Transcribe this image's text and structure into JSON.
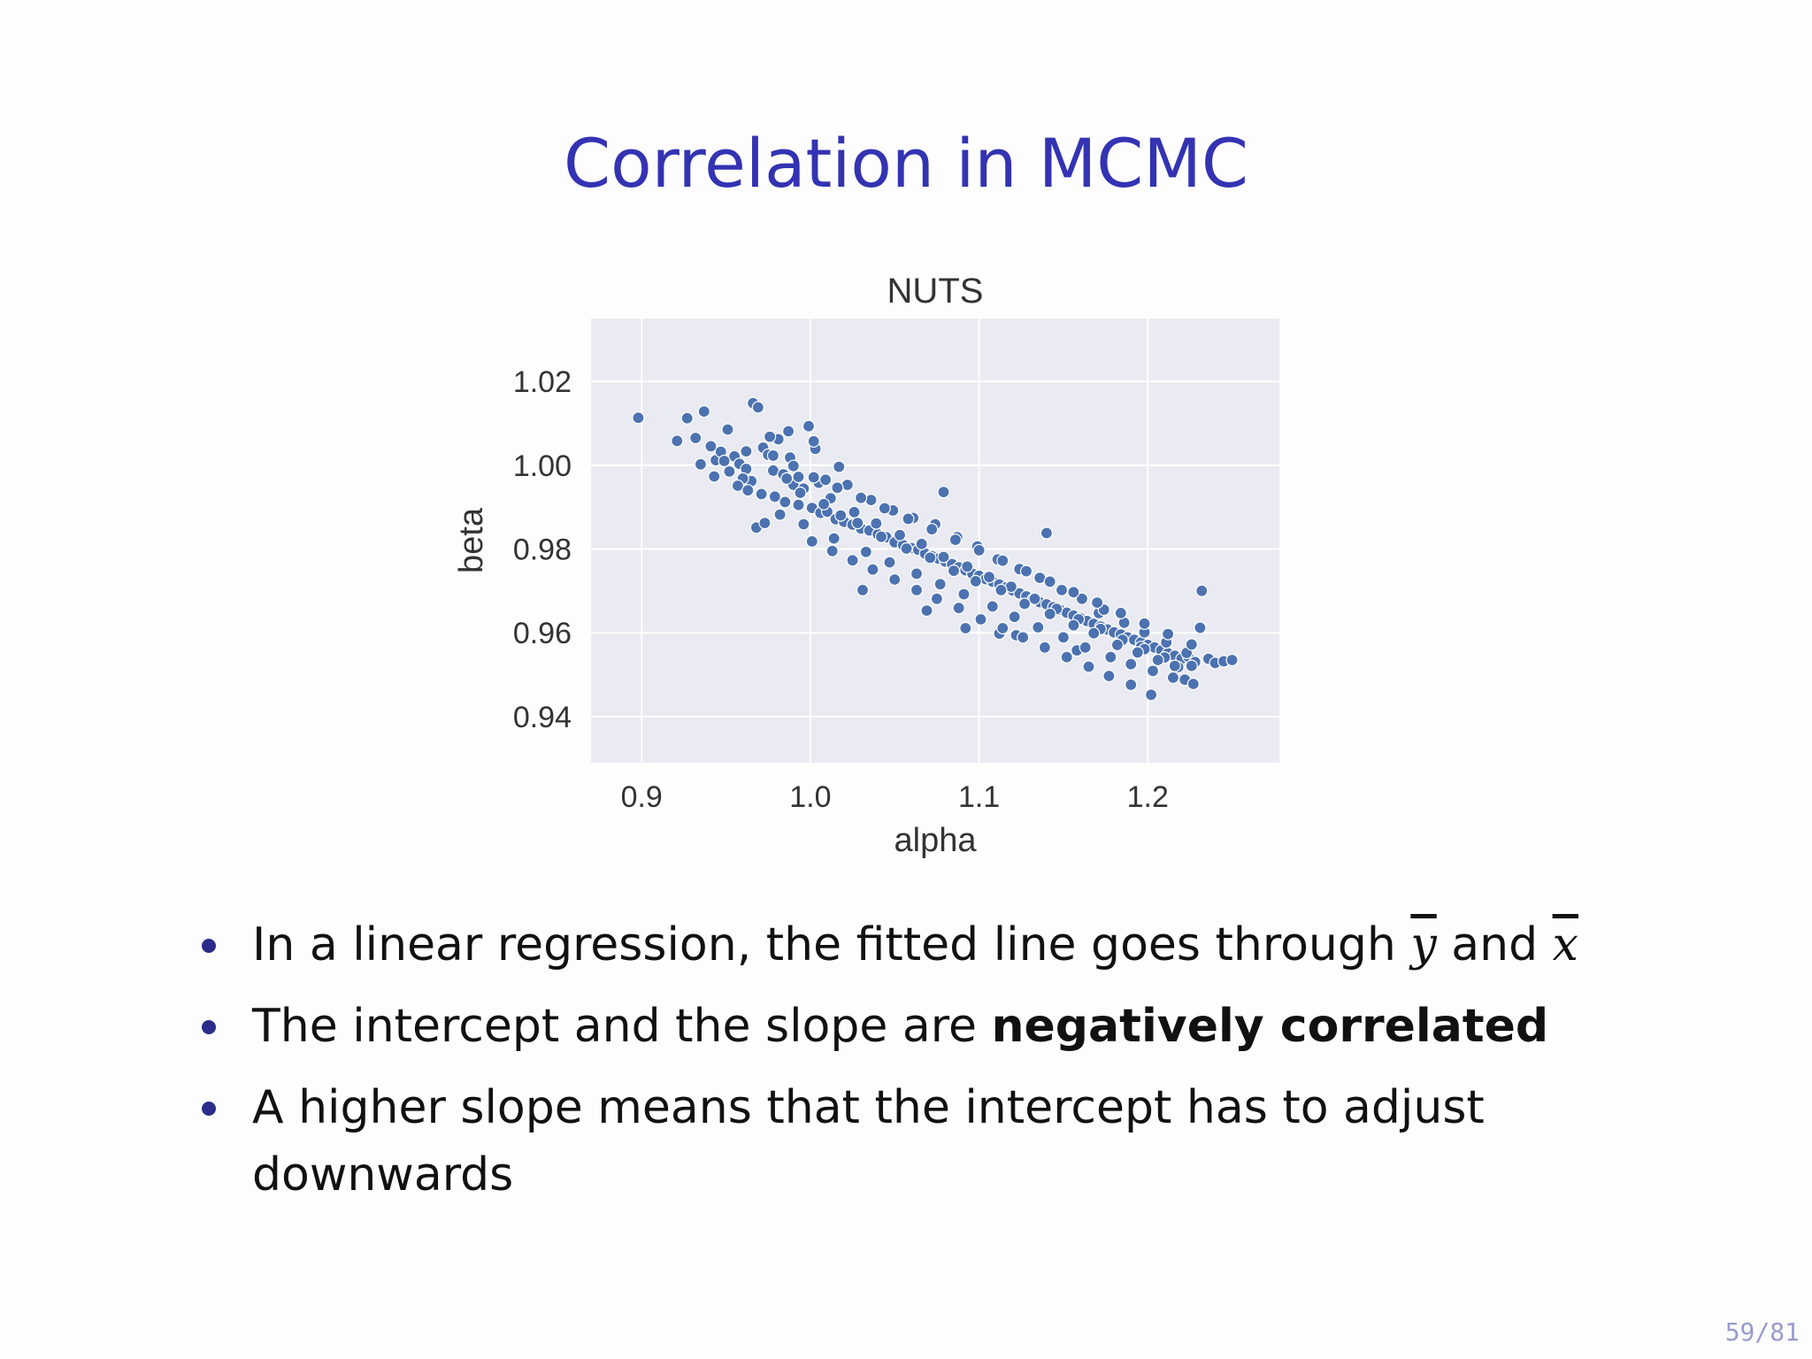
{
  "slide": {
    "title": "Correlation in MCMC",
    "page_number": "59/81",
    "bullets": [
      {
        "parts": [
          {
            "text": "In a linear regression, the fitted line goes through ",
            "style": "normal"
          },
          {
            "text": "y",
            "style": "overline"
          },
          {
            "text": " and ",
            "style": "normal"
          },
          {
            "text": "x",
            "style": "overline"
          }
        ]
      },
      {
        "parts": [
          {
            "text": "The intercept and the slope are ",
            "style": "normal"
          },
          {
            "text": "negatively correlated",
            "style": "bold"
          }
        ]
      },
      {
        "parts": [
          {
            "text": "A higher slope means that the intercept has to adjust downwards",
            "style": "normal"
          }
        ]
      }
    ]
  },
  "chart_data": {
    "type": "scatter",
    "title": "NUTS",
    "xlabel": "alpha",
    "ylabel": "beta",
    "xlim": [
      0.87,
      1.278
    ],
    "ylim": [
      0.929,
      1.035
    ],
    "x_ticks": [
      "0.9",
      "1.0",
      "1.1",
      "1.2"
    ],
    "x_tick_values": [
      0.9,
      1.0,
      1.1,
      1.2
    ],
    "y_ticks": [
      "1.02",
      "1.00",
      "0.98",
      "0.96",
      "0.94"
    ],
    "y_tick_values": [
      1.02,
      1.0,
      0.98,
      0.96,
      0.94
    ],
    "grid": true,
    "style": "seaborn-darkgrid",
    "colors": {
      "point": "#4c72b0",
      "point_edge": "#ffffff",
      "plot_background": "#eaeaf2",
      "grid": "#ffffff"
    },
    "series": [
      {
        "x": [
          0.898,
          0.921,
          0.927,
          0.932,
          0.937,
          0.941,
          0.944,
          0.947,
          0.951,
          0.955,
          0.958,
          0.962,
          0.966,
          0.969,
          0.972,
          0.965,
          0.975,
          0.978,
          0.981,
          0.984,
          0.987,
          0.99,
          0.993,
          0.996,
          0.999,
          1.003,
          0.968,
          0.973,
          0.943,
          0.935,
          0.952,
          0.96,
          0.949,
          0.957,
          0.963,
          0.971,
          0.979,
          0.985,
          0.993,
          1.001,
          1.006,
          1.01,
          1.015,
          1.02,
          1.025,
          1.03,
          1.035,
          1.04,
          1.045,
          1.05,
          1.055,
          1.06,
          1.064,
          1.068,
          1.072,
          1.076,
          1.08,
          1.084,
          1.088,
          1.092,
          1.096,
          1.1,
          1.104,
          1.108,
          1.112,
          1.116,
          1.12,
          1.124,
          1.128,
          1.132,
          1.136,
          1.14,
          1.144,
          1.148,
          1.152,
          1.156,
          1.16,
          1.164,
          1.168,
          1.172,
          1.176,
          1.18,
          1.184,
          1.188,
          1.192,
          1.196,
          1.2,
          1.204,
          1.208,
          1.212,
          1.216,
          1.22,
          1.224,
          1.228,
          1.232,
          1.222,
          1.226,
          1.236,
          1.24,
          1.245,
          1.25,
          1.218,
          1.231,
          1.196,
          1.171,
          1.158,
          1.14,
          1.122,
          1.112,
          1.092,
          1.079,
          1.069,
          1.031,
          1.017,
          1.002,
          0.988,
          0.976,
          0.962,
          1.005,
          1.009,
          1.022,
          1.036,
          1.049,
          1.061,
          1.074,
          1.087,
          1.099,
          1.111,
          1.124,
          1.136,
          1.149,
          1.161,
          1.174,
          1.186,
          1.198,
          1.211,
          1.223,
          1.012,
          1.026,
          1.039,
          1.053,
          1.066,
          1.079,
          1.093,
          1.106,
          1.119,
          1.133,
          1.146,
          1.159,
          1.172,
          1.185,
          1.198,
          1.21,
          0.986,
          0.994,
          1.008,
          1.018,
          1.028,
          1.042,
          1.057,
          1.071,
          1.085,
          1.098,
          1.113,
          1.127,
          1.142,
          1.156,
          1.168,
          1.182,
          1.194,
          1.206,
          1.216,
          0.982,
          0.996,
          1.014,
          1.033,
          1.047,
          1.063,
          1.077,
          1.091,
          1.108,
          1.121,
          1.135,
          1.15,
          1.163,
          1.178,
          1.19,
          1.203,
          1.215,
          1.227,
          0.978,
          0.99,
          1.002,
          1.016,
          1.03,
          1.044,
          1.058,
          1.072,
          1.086,
          1.1,
          1.114,
          1.128,
          1.142,
          1.156,
          1.17,
          1.184,
          1.198,
          1.212,
          1.226,
          1.001,
          1.013,
          1.025,
          1.037,
          1.05,
          1.063,
          1.075,
          1.088,
          1.101,
          1.114,
          1.126,
          1.139,
          1.152,
          1.165,
          1.177,
          1.19,
          1.202
        ],
        "y": [
          1.0113,
          1.0058,
          1.0112,
          1.0065,
          1.0128,
          1.0045,
          1.0012,
          1.0032,
          1.0085,
          1.0021,
          1.0003,
          0.9991,
          1.0148,
          1.0138,
          1.0042,
          0.9962,
          1.0025,
          0.9987,
          1.0062,
          0.9978,
          1.0081,
          0.9953,
          0.9972,
          0.9944,
          1.0093,
          1.0039,
          0.9851,
          0.9862,
          0.9973,
          1.0002,
          0.9985,
          0.9968,
          1.001,
          0.9951,
          0.994,
          0.9931,
          0.9925,
          0.9912,
          0.9905,
          0.9898,
          0.9886,
          0.9889,
          0.9871,
          0.9865,
          0.9858,
          0.9849,
          0.9844,
          0.9835,
          0.9828,
          0.9816,
          0.9809,
          0.9802,
          0.9798,
          0.9789,
          0.9783,
          0.9777,
          0.977,
          0.9764,
          0.9756,
          0.9749,
          0.9741,
          0.9736,
          0.9728,
          0.9722,
          0.9715,
          0.9708,
          0.9701,
          0.9694,
          0.9687,
          0.968,
          0.9673,
          0.9668,
          0.9661,
          0.9655,
          0.9648,
          0.9641,
          0.9635,
          0.9628,
          0.9621,
          0.9615,
          0.9608,
          0.9601,
          0.9596,
          0.9589,
          0.9583,
          0.9577,
          0.9571,
          0.9565,
          0.9558,
          0.9551,
          0.9545,
          0.9538,
          0.9543,
          0.953,
          0.97,
          0.9488,
          0.9521,
          0.9538,
          0.9528,
          0.9532,
          0.9535,
          0.9518,
          0.9612,
          0.9566,
          0.9647,
          0.9558,
          0.9838,
          0.9594,
          0.9598,
          0.9611,
          0.9936,
          0.9653,
          0.9702,
          0.9996,
          1.0057,
          1.0018,
          1.0068,
          1.0033,
          0.9958,
          0.9965,
          0.9953,
          0.9917,
          0.9892,
          0.9874,
          0.9859,
          0.9828,
          0.9806,
          0.9775,
          0.9752,
          0.9731,
          0.9702,
          0.9681,
          0.9655,
          0.9624,
          0.9601,
          0.9577,
          0.9552,
          0.9921,
          0.9888,
          0.9861,
          0.9833,
          0.9812,
          0.9781,
          0.9758,
          0.9733,
          0.971,
          0.9681,
          0.9657,
          0.9632,
          0.9609,
          0.9583,
          0.9561,
          0.9541,
          0.9968,
          0.9934,
          0.9907,
          0.988,
          0.9862,
          0.9829,
          0.9801,
          0.9779,
          0.9748,
          0.9723,
          0.9702,
          0.9669,
          0.9645,
          0.9618,
          0.9599,
          0.9571,
          0.9553,
          0.9535,
          0.9521,
          0.9882,
          0.9859,
          0.9825,
          0.9793,
          0.9768,
          0.9741,
          0.9716,
          0.9692,
          0.9663,
          0.9638,
          0.9613,
          0.9589,
          0.9565,
          0.9542,
          0.9525,
          0.9509,
          0.9493,
          0.9478,
          1.0023,
          0.9998,
          0.9971,
          0.9946,
          0.9922,
          0.9897,
          0.9872,
          0.9847,
          0.9822,
          0.9797,
          0.9772,
          0.9747,
          0.9722,
          0.9697,
          0.9672,
          0.9647,
          0.9622,
          0.9597,
          0.9572,
          0.9818,
          0.9795,
          0.9773,
          0.9751,
          0.9727,
          0.9702,
          0.9681,
          0.9659,
          0.9632,
          0.9611,
          0.9589,
          0.9565,
          0.9542,
          0.9519,
          0.9497,
          0.9476,
          0.9452
        ]
      }
    ]
  }
}
